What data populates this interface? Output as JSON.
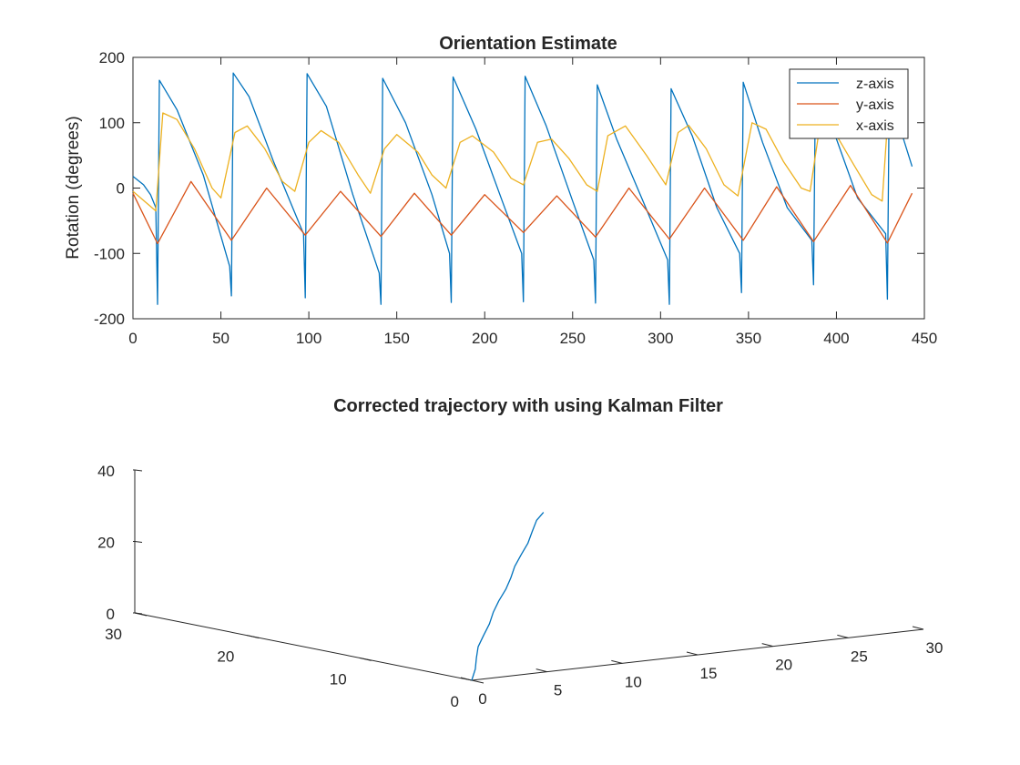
{
  "chart_data": [
    {
      "type": "line",
      "title": "Orientation Estimate",
      "xlabel": "",
      "ylabel": "Rotation (degrees)",
      "xlim": [
        0,
        450
      ],
      "ylim": [
        -200,
        200
      ],
      "xticks": [
        "0",
        "50",
        "100",
        "150",
        "200",
        "250",
        "300",
        "350",
        "400",
        "450"
      ],
      "yticks": [
        "200",
        "100",
        "0",
        "-100",
        "-200"
      ],
      "grid": false,
      "legend": "top-right",
      "series": [
        {
          "name": "z-axis",
          "color": "#0072BD",
          "x": [
            0,
            6,
            10,
            13,
            14,
            15,
            25,
            40,
            55,
            56,
            57,
            66,
            80,
            97,
            98,
            99,
            110,
            125,
            140,
            141,
            142,
            155,
            170,
            180,
            181,
            182,
            195,
            210,
            221,
            222,
            223,
            235,
            250,
            262,
            263,
            264,
            275,
            290,
            304,
            305,
            306,
            318,
            332,
            345,
            346,
            347,
            358,
            372,
            386,
            387,
            388,
            398,
            412,
            428,
            429,
            430,
            443
          ],
          "y": [
            18,
            5,
            -10,
            -30,
            -178,
            165,
            120,
            20,
            -120,
            -165,
            176,
            140,
            40,
            -70,
            -168,
            175,
            125,
            -10,
            -130,
            -178,
            168,
            100,
            -10,
            -100,
            -175,
            170,
            90,
            -20,
            -100,
            -174,
            171,
            95,
            -20,
            -110,
            -176,
            158,
            75,
            -20,
            -110,
            -178,
            152,
            80,
            -30,
            -100,
            -160,
            162,
            70,
            -30,
            -80,
            -148,
            148,
            90,
            -15,
            -70,
            -170,
            145,
            33
          ]
        },
        {
          "name": "y-axis",
          "color": "#D95319",
          "x": [
            0,
            14,
            33,
            56,
            76,
            98,
            118,
            141,
            160,
            181,
            200,
            222,
            241,
            263,
            282,
            305,
            325,
            347,
            366,
            387,
            408,
            429,
            443
          ],
          "y": [
            -8,
            -85,
            10,
            -80,
            0,
            -72,
            -5,
            -74,
            -8,
            -72,
            -10,
            -68,
            -12,
            -75,
            0,
            -78,
            0,
            -80,
            2,
            -82,
            4,
            -84,
            -8
          ]
        },
        {
          "name": "x-axis",
          "color": "#EDB120",
          "x": [
            0,
            13,
            17,
            25,
            35,
            45,
            50,
            58,
            65,
            75,
            85,
            92,
            100,
            107,
            117,
            128,
            135,
            143,
            150,
            162,
            170,
            178,
            186,
            193,
            205,
            215,
            222,
            230,
            238,
            248,
            258,
            264,
            270,
            280,
            292,
            303,
            310,
            316,
            326,
            336,
            344,
            352,
            360,
            370,
            380,
            385,
            390,
            398,
            410,
            420,
            426,
            429
          ],
          "y": [
            -5,
            -35,
            115,
            105,
            60,
            0,
            -15,
            85,
            95,
            60,
            10,
            -5,
            70,
            88,
            70,
            20,
            -8,
            60,
            82,
            55,
            20,
            0,
            70,
            80,
            55,
            15,
            5,
            70,
            75,
            45,
            5,
            -5,
            80,
            95,
            50,
            5,
            85,
            96,
            60,
            5,
            -12,
            100,
            90,
            40,
            0,
            -5,
            85,
            90,
            35,
            -10,
            -20,
            98
          ]
        }
      ]
    },
    {
      "type": "line",
      "title": "Corrected trajectory with using Kalman Filter",
      "xlabel": "",
      "ylabel": "",
      "zlabel": "",
      "xlim": [
        0,
        30
      ],
      "ylim": [
        0,
        30
      ],
      "zlim": [
        0,
        40
      ],
      "xticks": [
        "0",
        "5",
        "10",
        "15",
        "20",
        "25",
        "30"
      ],
      "yticks": [
        "0",
        "10",
        "20",
        "30"
      ],
      "zticks": [
        "0",
        "20",
        "40"
      ],
      "grid": false,
      "series": [
        {
          "color": "#0072BD",
          "x": [
            0,
            0.2,
            0.4,
            0.6,
            0.9,
            1.3,
            1.7,
            2.1,
            2.5,
            2.9,
            3.3,
            3.7,
            4.1,
            4.5,
            4.9,
            5.3
          ],
          "y": [
            0,
            0.05,
            0.1,
            0.15,
            0.2,
            0.25,
            0.3,
            0.35,
            0.4,
            0.45,
            0.5,
            0.55,
            0.6,
            0.65,
            0.7,
            0.75
          ],
          "z": [
            0,
            3,
            6,
            9,
            12,
            15,
            18,
            21,
            24,
            27,
            30,
            33,
            36,
            39,
            42,
            44
          ]
        }
      ]
    }
  ]
}
